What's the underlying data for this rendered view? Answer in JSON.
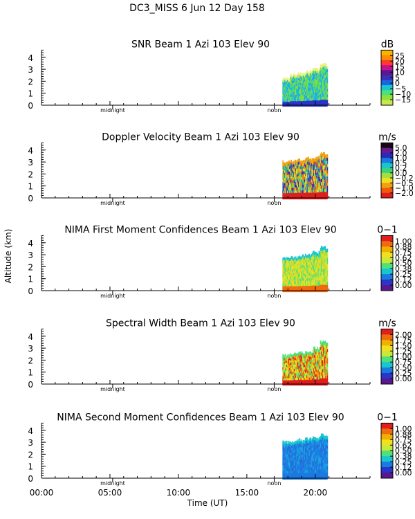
{
  "figure": {
    "header": "DC3_MISS    6 Jun 12 Day 158",
    "ylabel": "Altitude (km)",
    "xlabel": "Time (UT)",
    "x_ticklabels": [
      "00:00",
      "05:00",
      "10:00",
      "15:00",
      "20:00"
    ],
    "marker_midnight": "midnight",
    "marker_noon": "noon"
  },
  "chart_data": [
    {
      "type": "heatmap",
      "title": "SNR Beam 1 Azi 103 Elev 90",
      "unit": "dB",
      "xlim": [
        0,
        24
      ],
      "ylim": [
        0,
        4.6
      ],
      "y_ticks": [
        0,
        1,
        2,
        3,
        4
      ],
      "data_extent": {
        "t_start": 17.6,
        "t_end": 20.9,
        "top_km": [
          2.2,
          2.5,
          2.6,
          2.8,
          3.0,
          3.4
        ]
      },
      "colorbar": {
        "labels": [
          "25",
          "20",
          "15",
          "10",
          "5",
          "0",
          "−5",
          "−10",
          "−15"
        ],
        "colors": [
          "#f8b400",
          "#ff8c00",
          "#ff3b2a",
          "#c8108c",
          "#5a188f",
          "#3a2fb6",
          "#1a66e0",
          "#19c6cf",
          "#4ee07a",
          "#8ee040",
          "#c8e84c"
        ]
      },
      "fill": {
        "base": [
          "#86e03a",
          "#5ad86c",
          "#19c6cf",
          "#22a6f0"
        ],
        "bottom": "#2a34c8",
        "top_edge": "#e8f07a"
      }
    },
    {
      "type": "heatmap",
      "title": "Doppler Velocity Beam 1 Azi 103 Elev 90",
      "unit": "m/s",
      "xlim": [
        0,
        24
      ],
      "ylim": [
        0,
        4.6
      ],
      "y_ticks": [
        0,
        1,
        2,
        3,
        4
      ],
      "data_extent": {
        "t_start": 17.6,
        "t_end": 20.9,
        "top_km": [
          3.0,
          3.1,
          3.2,
          3.3,
          3.4,
          3.7
        ]
      },
      "colorbar": {
        "labels": [
          "5.0",
          "2.0",
          "1.0",
          "0.5",
          "0.2",
          "0.0",
          "−0.2",
          "−0.5",
          "−1.0",
          "−2.0"
        ],
        "colors": [
          "#180818",
          "#6a1a8a",
          "#2a2ab8",
          "#1a7ae0",
          "#19c6cf",
          "#3ad27a",
          "#a6e040",
          "#f0e020",
          "#f0a010",
          "#f05a10",
          "#e01e1e"
        ]
      },
      "fill": {
        "base": [
          "#f0e020",
          "#f0a010",
          "#e8441a",
          "#3ad27a",
          "#a6e040",
          "#1a7ae0",
          "#2a2ab8"
        ],
        "bottom": "#e01e1e",
        "top_edge": "#f0a010"
      }
    },
    {
      "type": "heatmap",
      "title": "NIMA First Moment Confidences Beam 1 Azi 103 Elev 90",
      "unit": "0−1",
      "xlim": [
        0,
        24
      ],
      "ylim": [
        0,
        4.6
      ],
      "y_ticks": [
        0,
        1,
        2,
        3,
        4
      ],
      "data_extent": {
        "t_start": 17.6,
        "t_end": 20.9,
        "top_km": [
          2.7,
          2.8,
          2.9,
          3.0,
          3.2,
          3.6
        ]
      },
      "colorbar": {
        "labels": [
          "1.00",
          "0.88",
          "0.75",
          "0.62",
          "0.50",
          "0.38",
          "0.25",
          "0.12",
          "0.00"
        ],
        "colors": [
          "#e01e1e",
          "#f06a10",
          "#f0b000",
          "#f0e020",
          "#c8e83a",
          "#4ee07a",
          "#19c6cf",
          "#1a7ae0",
          "#2a34c8",
          "#5a188f"
        ]
      },
      "fill": {
        "base": [
          "#f0e020",
          "#c8e83a",
          "#e8d820",
          "#a6e040",
          "#4ee07a"
        ],
        "bottom": "#f06a10",
        "top_edge": "#19c6cf"
      }
    },
    {
      "type": "heatmap",
      "title": "Spectral Width Beam 1 Azi 103 Elev 90",
      "unit": "m/s",
      "xlim": [
        0,
        24
      ],
      "ylim": [
        0,
        4.6
      ],
      "y_ticks": [
        0,
        1,
        2,
        3,
        4
      ],
      "data_extent": {
        "t_start": 17.6,
        "t_end": 20.9,
        "top_km": [
          2.4,
          2.5,
          2.6,
          2.7,
          3.0,
          3.5
        ]
      },
      "colorbar": {
        "labels": [
          "2.00",
          "1.75",
          "1.50",
          "1.25",
          "1.00",
          "0.75",
          "0.50",
          "0.25",
          "0.00"
        ],
        "colors": [
          "#e01e1e",
          "#f06a10",
          "#f0b000",
          "#f0e020",
          "#c8e83a",
          "#4ee07a",
          "#19c6cf",
          "#1a7ae0",
          "#2a34c8",
          "#5a188f"
        ]
      },
      "fill": {
        "base": [
          "#e01e1e",
          "#f06a10",
          "#f0b000",
          "#f0e020",
          "#c8e83a",
          "#4ee07a"
        ],
        "bottom": "#e01e1e",
        "top_edge": "#4ee07a"
      }
    },
    {
      "type": "heatmap",
      "title": "NIMA Second Moment Confidences Beam 1 Azi 103 Elev 90",
      "unit": "0−1",
      "xlim": [
        0,
        24
      ],
      "ylim": [
        0,
        4.6
      ],
      "y_ticks": [
        0,
        1,
        2,
        3,
        4
      ],
      "data_extent": {
        "t_start": 17.6,
        "t_end": 20.9,
        "top_km": [
          3.0,
          3.1,
          3.2,
          3.3,
          3.4,
          3.6
        ]
      },
      "colorbar": {
        "labels": [
          "1.00",
          "0.88",
          "0.75",
          "0.62",
          "0.50",
          "0.38",
          "0.25",
          "0.12",
          "0.00"
        ],
        "colors": [
          "#e01e1e",
          "#f06a10",
          "#f0b000",
          "#f0e020",
          "#c8e83a",
          "#4ee07a",
          "#19c6cf",
          "#1a7ae0",
          "#2a34c8",
          "#5a188f"
        ]
      },
      "fill": {
        "base": [
          "#1a7ae0",
          "#1a8ae8",
          "#2a6ad8",
          "#19a6df"
        ],
        "bottom": "#1a7ae0",
        "top_edge": "#19c6cf"
      }
    }
  ]
}
